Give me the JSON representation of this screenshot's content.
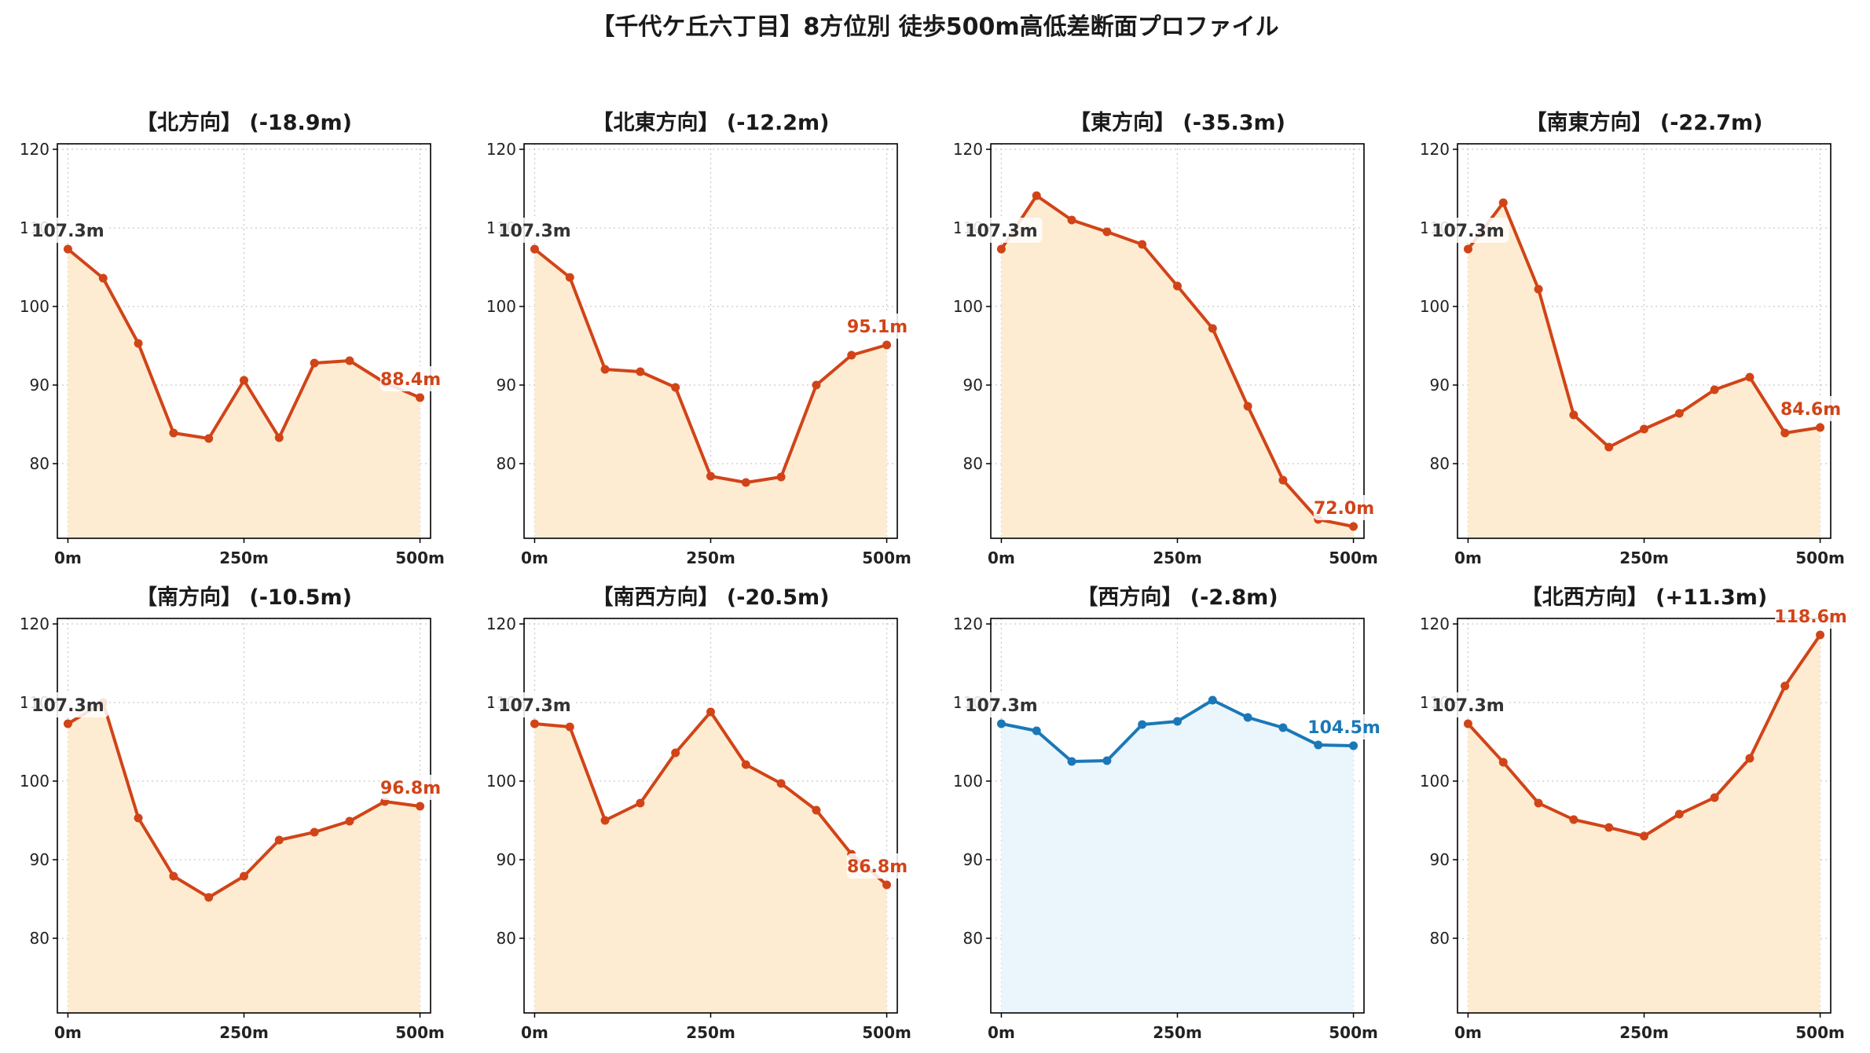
{
  "figure_title": "【千代ケ丘六丁目】8方位別 徒歩500m高低差断面プロファイル",
  "chart_data": [
    {
      "type": "area",
      "title": "【北方向】 (-18.9m)",
      "x": [
        0,
        50,
        100,
        150,
        200,
        250,
        300,
        350,
        400,
        450,
        500
      ],
      "values": [
        107.3,
        103.6,
        95.3,
        83.9,
        83.2,
        90.6,
        83.3,
        92.8,
        93.1,
        90.3,
        88.4
      ],
      "x_ticks": [
        "0m",
        "250m",
        "500m"
      ],
      "y_ticks": [
        80,
        90,
        100,
        110,
        120
      ],
      "ylim": [
        70.5,
        120.7
      ],
      "xlim": [
        -15,
        515
      ],
      "start_label": "107.3m",
      "end_label": "88.4m",
      "color": "#d14418",
      "fill": "#fdecd2",
      "grid": true
    },
    {
      "type": "area",
      "title": "【北東方向】 (-12.2m)",
      "x": [
        0,
        50,
        100,
        150,
        200,
        250,
        300,
        350,
        400,
        450,
        500
      ],
      "values": [
        107.3,
        103.7,
        92.0,
        91.7,
        89.7,
        78.4,
        77.6,
        78.3,
        90.0,
        93.8,
        95.1
      ],
      "x_ticks": [
        "0m",
        "250m",
        "500m"
      ],
      "y_ticks": [
        80,
        90,
        100,
        110,
        120
      ],
      "ylim": [
        70.5,
        120.7
      ],
      "xlim": [
        -15,
        515
      ],
      "start_label": "107.3m",
      "end_label": "95.1m",
      "color": "#d14418",
      "fill": "#fdecd2",
      "grid": true
    },
    {
      "type": "area",
      "title": "【東方向】 (-35.3m)",
      "x": [
        0,
        50,
        100,
        150,
        200,
        250,
        300,
        350,
        400,
        450,
        500
      ],
      "values": [
        107.3,
        114.1,
        111.0,
        109.5,
        107.9,
        102.6,
        97.2,
        87.3,
        77.9,
        72.9,
        72.0
      ],
      "x_ticks": [
        "0m",
        "250m",
        "500m"
      ],
      "y_ticks": [
        80,
        90,
        100,
        110,
        120
      ],
      "ylim": [
        70.5,
        120.7
      ],
      "xlim": [
        -15,
        515
      ],
      "start_label": "107.3m",
      "end_label": "72.0m",
      "color": "#d14418",
      "fill": "#fdecd2",
      "grid": true
    },
    {
      "type": "area",
      "title": "【南東方向】 (-22.7m)",
      "x": [
        0,
        50,
        100,
        150,
        200,
        250,
        300,
        350,
        400,
        450,
        500
      ],
      "values": [
        107.3,
        113.2,
        102.2,
        86.2,
        82.1,
        84.4,
        86.4,
        89.4,
        91.0,
        83.9,
        84.6
      ],
      "x_ticks": [
        "0m",
        "250m",
        "500m"
      ],
      "y_ticks": [
        80,
        90,
        100,
        110,
        120
      ],
      "ylim": [
        70.5,
        120.7
      ],
      "xlim": [
        -15,
        515
      ],
      "start_label": "107.3m",
      "end_label": "84.6m",
      "color": "#d14418",
      "fill": "#fdecd2",
      "grid": true
    },
    {
      "type": "area",
      "title": "【南方向】 (-10.5m)",
      "x": [
        0,
        50,
        100,
        150,
        200,
        250,
        300,
        350,
        400,
        450,
        500
      ],
      "values": [
        107.3,
        110.0,
        95.3,
        87.9,
        85.2,
        87.9,
        92.5,
        93.5,
        94.9,
        97.4,
        96.8
      ],
      "x_ticks": [
        "0m",
        "250m",
        "500m"
      ],
      "y_ticks": [
        80,
        90,
        100,
        110,
        120
      ],
      "ylim": [
        70.5,
        120.7
      ],
      "xlim": [
        -15,
        515
      ],
      "start_label": "107.3m",
      "end_label": "96.8m",
      "color": "#d14418",
      "fill": "#fdecd2",
      "grid": true
    },
    {
      "type": "area",
      "title": "【南西方向】 (-20.5m)",
      "x": [
        0,
        50,
        100,
        150,
        200,
        250,
        300,
        350,
        400,
        450,
        500
      ],
      "values": [
        107.3,
        106.9,
        95.0,
        97.2,
        103.6,
        108.8,
        102.1,
        99.7,
        96.3,
        90.7,
        86.8
      ],
      "x_ticks": [
        "0m",
        "250m",
        "500m"
      ],
      "y_ticks": [
        80,
        90,
        100,
        110,
        120
      ],
      "ylim": [
        70.5,
        120.7
      ],
      "xlim": [
        -15,
        515
      ],
      "start_label": "107.3m",
      "end_label": "86.8m",
      "color": "#d14418",
      "fill": "#fdecd2",
      "grid": true
    },
    {
      "type": "area",
      "title": "【西方向】 (-2.8m)",
      "x": [
        0,
        50,
        100,
        150,
        200,
        250,
        300,
        350,
        400,
        450,
        500
      ],
      "values": [
        107.3,
        106.4,
        102.5,
        102.6,
        107.2,
        107.6,
        110.3,
        108.1,
        106.8,
        104.6,
        104.5
      ],
      "x_ticks": [
        "0m",
        "250m",
        "500m"
      ],
      "y_ticks": [
        80,
        90,
        100,
        110,
        120
      ],
      "ylim": [
        70.5,
        120.7
      ],
      "xlim": [
        -15,
        515
      ],
      "start_label": "107.3m",
      "end_label": "104.5m",
      "color": "#1a78b8",
      "fill": "#ebf6fc",
      "grid": true
    },
    {
      "type": "area",
      "title": "【北西方向】 (+11.3m)",
      "x": [
        0,
        50,
        100,
        150,
        200,
        250,
        300,
        350,
        400,
        450,
        500
      ],
      "values": [
        107.3,
        102.4,
        97.2,
        95.1,
        94.1,
        93.0,
        95.8,
        97.9,
        102.9,
        112.1,
        118.6
      ],
      "x_ticks": [
        "0m",
        "250m",
        "500m"
      ],
      "y_ticks": [
        80,
        90,
        100,
        110,
        120
      ],
      "ylim": [
        70.5,
        120.7
      ],
      "xlim": [
        -15,
        515
      ],
      "start_label": "107.3m",
      "end_label": "118.6m",
      "color": "#d14418",
      "fill": "#fdecd2",
      "grid": true
    }
  ]
}
